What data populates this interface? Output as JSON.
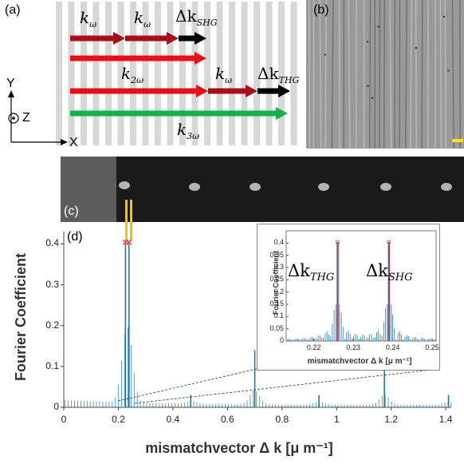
{
  "panels": {
    "a": {
      "label": "(a)",
      "vectors": {
        "k_omega": {
          "base": "k",
          "sub": "ω"
        },
        "delta_k_shg": {
          "base": "Δk",
          "sub": "SHG"
        },
        "k_2omega": {
          "base": "k",
          "sub": "2ω"
        },
        "delta_k_thg": {
          "base": "Δk",
          "sub": "THG"
        },
        "k_3omega": {
          "base": "k",
          "sub": "3ω"
        }
      },
      "axes": {
        "y": "Y",
        "z": "Z",
        "x": "X"
      },
      "colors": {
        "red": "#e5101a",
        "dark_red": "#a4111a",
        "black": "#000000",
        "green": "#16b04a",
        "stripe": "#d7d7d7"
      }
    },
    "b": {
      "label": "(b)",
      "scale_bar_color": "#f2e600"
    },
    "c": {
      "label": "(c)",
      "marker_color": "#f4c016"
    },
    "d": {
      "label": "(d)"
    }
  },
  "chart_data": [
    {
      "type": "line",
      "name": "main",
      "xlabel": "mismatchvector Δ k [μ m⁻¹]",
      "ylabel": "Fourier Coefficient",
      "xlim": [
        0,
        1.42
      ],
      "ylim": [
        0,
        0.43
      ],
      "xticks": [
        "0",
        "0.2",
        "0.4",
        "0.6",
        "0.8",
        "1",
        "1.2",
        "1.4"
      ],
      "yticks": [
        "0",
        "0.1",
        "0.2",
        "0.3",
        "0.4"
      ],
      "line_color": "#1f77b4",
      "marker_color": "#e0262b",
      "markers": [
        {
          "x": 0.226,
          "y": 0.404
        },
        {
          "x": 0.239,
          "y": 0.404
        }
      ],
      "peaks": [
        {
          "x": 0.226,
          "y": 0.4
        },
        {
          "x": 0.239,
          "y": 0.4
        },
        {
          "x": 0.465,
          "y": 0.03
        },
        {
          "x": 0.7,
          "y": 0.14
        },
        {
          "x": 0.935,
          "y": 0.03
        },
        {
          "x": 1.175,
          "y": 0.1
        },
        {
          "x": 1.41,
          "y": 0.03
        }
      ]
    },
    {
      "type": "line",
      "name": "inset",
      "xlabel": "mismatchvector Δ k [μ m⁻¹]",
      "ylabel": "Fourier Coefficient",
      "xlim": [
        0.213,
        0.251
      ],
      "ylim": [
        0,
        0.45
      ],
      "xticks": [
        "0.22",
        "0.23",
        "0.24",
        "0.25"
      ],
      "yticks": [
        "0",
        "0.05",
        "0.1",
        "0.15",
        "0.2",
        "0.25",
        "0.3",
        "0.35",
        "0.4"
      ],
      "annotations": [
        {
          "x": 0.226,
          "base": "Δk",
          "sub": "THG"
        },
        {
          "x": 0.239,
          "base": "Δk",
          "sub": "SHG"
        }
      ],
      "peaks": [
        {
          "x": 0.226,
          "y": 0.404
        },
        {
          "x": 0.239,
          "y": 0.404
        }
      ]
    }
  ]
}
